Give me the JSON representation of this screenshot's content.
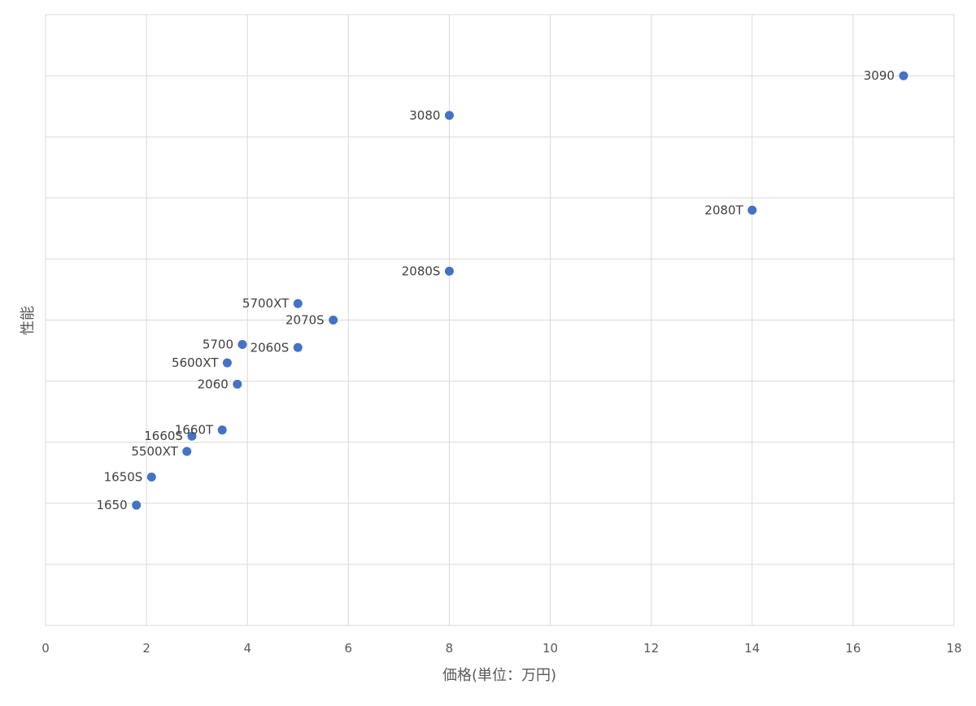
{
  "chart_data": {
    "type": "scatter",
    "title": "",
    "xlabel": "価格(単位：万円)",
    "ylabel": "性能",
    "xlim": [
      0,
      18
    ],
    "x_ticks": [
      0,
      2,
      4,
      6,
      8,
      10,
      12,
      14,
      16,
      18
    ],
    "ylim": [
      0,
      10
    ],
    "y_ticks_labeled": false,
    "grid": true,
    "legend": "none",
    "marker_color": "#4472c4",
    "points": [
      {
        "label": "3090",
        "x": 17.0,
        "y": 9.0
      },
      {
        "label": "3080",
        "x": 8.0,
        "y": 8.35
      },
      {
        "label": "2080T",
        "x": 14.0,
        "y": 6.8
      },
      {
        "label": "2080S",
        "x": 8.0,
        "y": 5.8
      },
      {
        "label": "5700XT",
        "x": 5.0,
        "y": 5.27
      },
      {
        "label": "2070S",
        "x": 5.7,
        "y": 5.0
      },
      {
        "label": "5700",
        "x": 3.9,
        "y": 4.6
      },
      {
        "label": "2060S",
        "x": 5.0,
        "y": 4.55
      },
      {
        "label": "5600XT",
        "x": 3.6,
        "y": 4.3
      },
      {
        "label": "2060",
        "x": 3.8,
        "y": 3.95
      },
      {
        "label": "1660T",
        "x": 3.5,
        "y": 3.2
      },
      {
        "label": "1660S",
        "x": 2.9,
        "y": 3.1
      },
      {
        "label": "5500XT",
        "x": 2.8,
        "y": 2.85
      },
      {
        "label": "1650S",
        "x": 2.1,
        "y": 2.43
      },
      {
        "label": "1650",
        "x": 1.8,
        "y": 1.97
      }
    ]
  }
}
